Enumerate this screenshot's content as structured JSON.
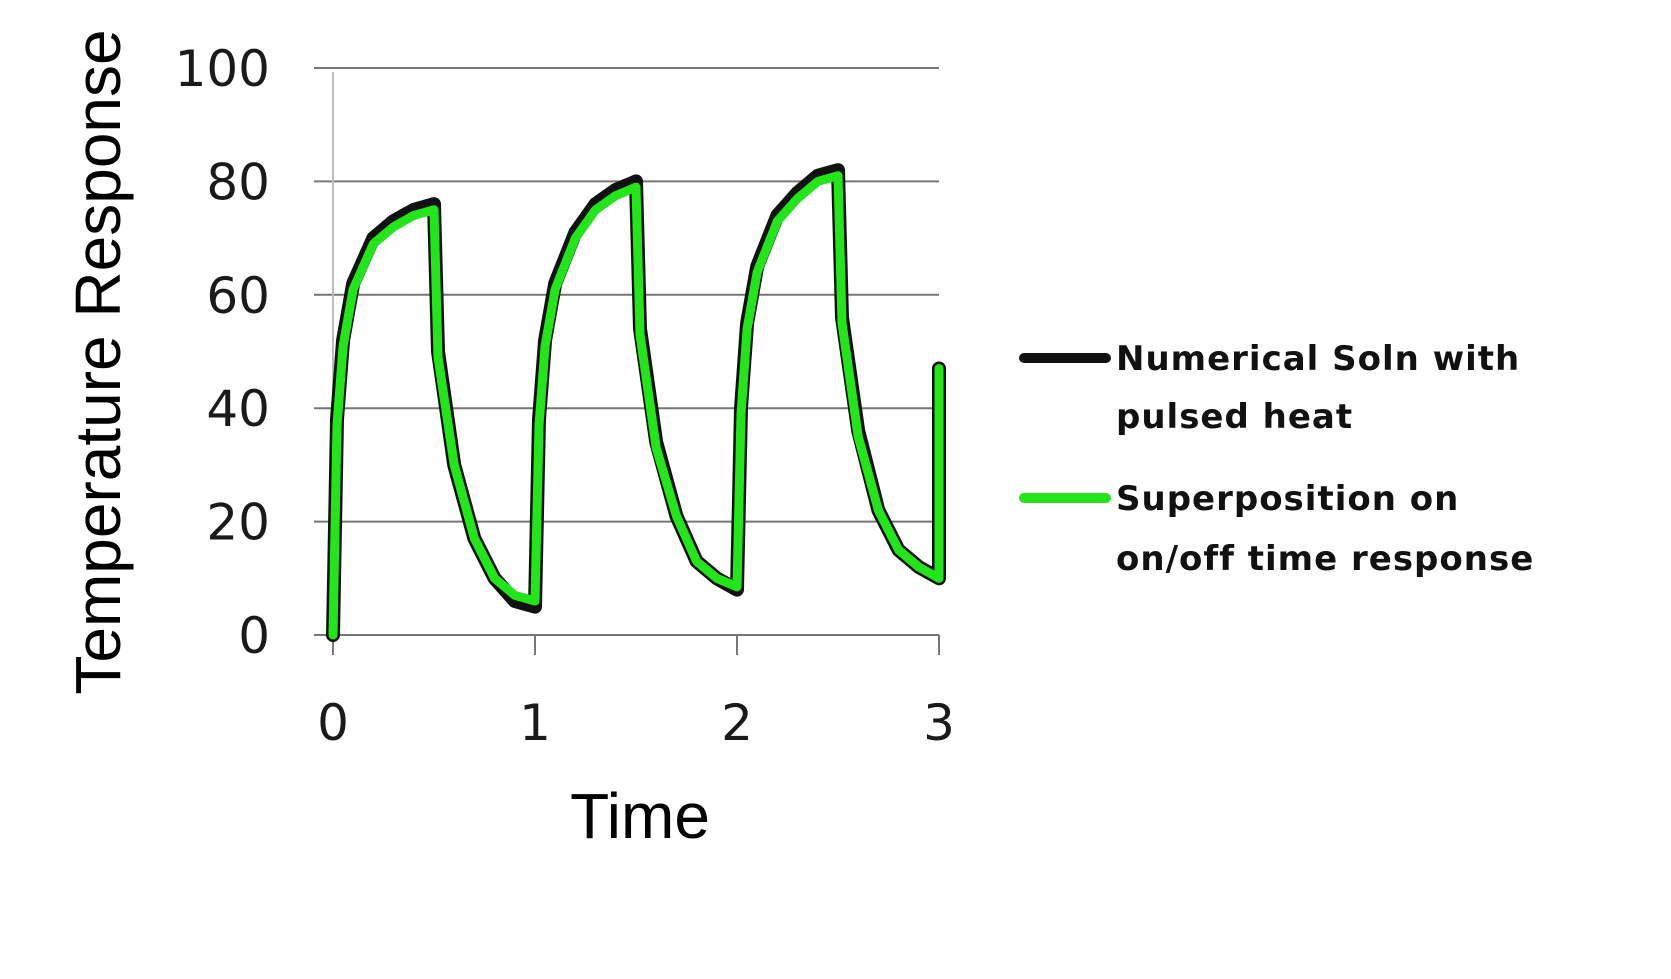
{
  "chart_data": {
    "type": "line",
    "title": "",
    "xlabel": "Time",
    "ylabel": "Temperature Response",
    "xlim": [
      0,
      3
    ],
    "ylim": [
      0,
      100
    ],
    "x_ticks": [
      "0",
      "1",
      "2",
      "3"
    ],
    "y_ticks": [
      "0",
      "20",
      "40",
      "60",
      "80",
      "100"
    ],
    "grid": "horizontal",
    "legend_position": "right",
    "series": [
      {
        "name": "Numerical Soln with pulsed heat",
        "color": "#111111",
        "x": [
          0,
          0.02,
          0.05,
          0.1,
          0.2,
          0.3,
          0.4,
          0.5,
          0.52,
          0.6,
          0.7,
          0.8,
          0.9,
          1.0,
          1.02,
          1.05,
          1.1,
          1.2,
          1.3,
          1.4,
          1.5,
          1.52,
          1.6,
          1.7,
          1.8,
          1.9,
          2.0,
          2.02,
          2.05,
          2.1,
          2.2,
          2.3,
          2.4,
          2.5,
          2.52,
          2.6,
          2.7,
          2.8,
          2.9,
          3.0,
          3.0
        ],
        "y": [
          0,
          38,
          52,
          62,
          70,
          73,
          75,
          76,
          50,
          30,
          17,
          10,
          6,
          5,
          38,
          52,
          62,
          71,
          76,
          78.5,
          80,
          54,
          34,
          21,
          13,
          10,
          8,
          40,
          55,
          65,
          74,
          78,
          81,
          82,
          56,
          36,
          22,
          15,
          12,
          10,
          47
        ]
      },
      {
        "name": "Superposition on on/off time response",
        "color": "#22e51a",
        "x": [
          0,
          0.02,
          0.05,
          0.1,
          0.2,
          0.3,
          0.4,
          0.5,
          0.52,
          0.6,
          0.7,
          0.8,
          0.9,
          1.0,
          1.02,
          1.05,
          1.1,
          1.2,
          1.3,
          1.4,
          1.5,
          1.52,
          1.6,
          1.7,
          1.8,
          1.9,
          2.0,
          2.02,
          2.05,
          2.1,
          2.2,
          2.3,
          2.4,
          2.5,
          2.52,
          2.6,
          2.7,
          2.8,
          2.9,
          3.0,
          3.0
        ],
        "y": [
          0,
          37,
          51,
          61,
          69,
          72,
          74,
          75,
          49,
          30,
          17,
          10,
          7,
          6,
          37,
          51,
          61,
          70,
          75,
          77.5,
          79,
          53,
          33,
          21,
          13,
          10,
          8.5,
          39,
          54,
          64,
          73,
          77,
          80,
          81,
          55,
          35,
          22,
          15,
          12,
          10,
          47
        ]
      }
    ]
  },
  "axes": {
    "x_title": "Time",
    "y_title": "Temperature Response",
    "x_ticks": [
      "0",
      "1",
      "2",
      "3"
    ],
    "y_ticks": [
      "0",
      "20",
      "40",
      "60",
      "80",
      "100"
    ]
  },
  "legend": {
    "items": [
      {
        "line1": "Numerical Soln with",
        "line2": "pulsed heat",
        "color": "#111111"
      },
      {
        "line1": "Superposition on",
        "line2": "on/off time response",
        "color": "#22e51a"
      }
    ]
  }
}
